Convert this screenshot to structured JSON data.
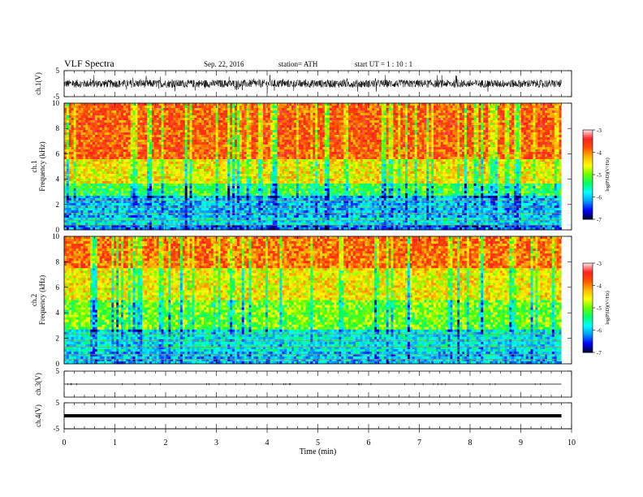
{
  "header": {
    "title": "VLF  Spectra",
    "date": "Sep. 22, 2016",
    "station": "station= ATH",
    "start": "start  UT  =   1  : 10 : 1"
  },
  "colors": {
    "trace": "#000000",
    "colormap": [
      "#000033",
      "#0000ff",
      "#0099ff",
      "#00ffff",
      "#00ff66",
      "#66ff00",
      "#ffff00",
      "#ffb400",
      "#ff5000",
      "#ff2020",
      "#ffe6e6"
    ]
  },
  "chart_data": [
    {
      "type": "line",
      "ylabel": "ch.1(V)",
      "ylim": [
        -5,
        5
      ],
      "yticks": [
        "5",
        "-5"
      ],
      "description_values": "broadband waveform, amplitude about ±1.5 V"
    },
    {
      "type": "heatmap",
      "ylabel": "ch.1\nFrequency  (kHz)",
      "ylim": [
        0,
        10
      ],
      "yticks": [
        "10",
        "8",
        "6",
        "4",
        "2",
        "0"
      ],
      "colorbar": {
        "label": "log(PSD)(V²/Hz)",
        "range": [
          -7,
          -3
        ],
        "ticks": [
          "-3",
          "-4",
          "-5",
          "-6",
          "-7"
        ]
      },
      "bands": [
        {
          "freq_khz": [
            0.0,
            0.4
          ],
          "log_psd": -6.3
        },
        {
          "freq_khz": [
            0.4,
            1.0
          ],
          "log_psd": -5.8
        },
        {
          "freq_khz": [
            1.0,
            2.6
          ],
          "log_psd": -6.0
        },
        {
          "freq_khz": [
            2.6,
            3.6
          ],
          "log_psd": -5.2
        },
        {
          "freq_khz": [
            3.6,
            5.5
          ],
          "log_psd": -4.5
        },
        {
          "freq_khz": [
            5.5,
            10.0
          ],
          "log_psd": -3.8
        }
      ]
    },
    {
      "type": "heatmap",
      "ylabel": "ch.2\nFrequency  (kHz)",
      "ylim": [
        0,
        10
      ],
      "yticks": [
        "10",
        "8",
        "6",
        "4",
        "2",
        "0"
      ],
      "colorbar": {
        "label": "log(PSD)(V²/Hz)",
        "range": [
          -7,
          -3
        ],
        "ticks": [
          "-3",
          "-4",
          "-5",
          "-6",
          "-7"
        ]
      },
      "bands": [
        {
          "freq_khz": [
            0.0,
            1.0
          ],
          "log_psd": -6.0
        },
        {
          "freq_khz": [
            1.0,
            2.6
          ],
          "log_psd": -5.8
        },
        {
          "freq_khz": [
            2.6,
            5.0
          ],
          "log_psd": -5.0
        },
        {
          "freq_khz": [
            5.0,
            7.5
          ],
          "log_psd": -4.5
        },
        {
          "freq_khz": [
            7.5,
            10.0
          ],
          "log_psd": -3.9
        }
      ]
    },
    {
      "type": "line",
      "ylabel": "ch.3(V)",
      "ylim": [
        -5,
        5
      ],
      "yticks": [
        "5"
      ],
      "values": 0
    },
    {
      "type": "line",
      "ylabel": "ch.4(V)",
      "ylim": [
        -5,
        5
      ],
      "yticks": [
        "5",
        "-5"
      ],
      "values": 0
    }
  ],
  "x_axis": {
    "label": "Time  (min)",
    "range": [
      0,
      10
    ],
    "data_end": 9.8,
    "ticks": [
      "0",
      "1",
      "2",
      "3",
      "4",
      "5",
      "6",
      "7",
      "8",
      "9",
      "10"
    ]
  }
}
